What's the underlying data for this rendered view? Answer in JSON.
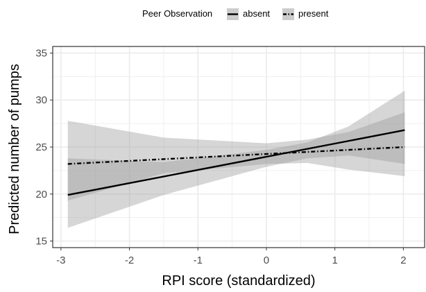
{
  "chart_data": {
    "type": "line",
    "xlabel": "RPI score (standardized)",
    "ylabel": "Predicted number of pumps",
    "xlim": [
      -3.12,
      2.31
    ],
    "ylim": [
      14.3,
      35.7
    ],
    "x_ticks": [
      -3,
      -2,
      -1,
      0,
      1,
      2
    ],
    "y_ticks": [
      15,
      20,
      25,
      30,
      35
    ],
    "grid": true,
    "legend": {
      "title": "Peer Observation",
      "placement": "top",
      "entries": [
        "absent",
        "present"
      ]
    },
    "series": [
      {
        "name": "absent",
        "line_style": "solid",
        "x": [
          -2.9,
          2.02
        ],
        "y": [
          19.9,
          26.8
        ],
        "ci_lower": [
          [
            -2.9,
            16.4
          ],
          [
            -1.5,
            19.9
          ],
          [
            0.0,
            22.9
          ],
          [
            0.6,
            23.8
          ],
          [
            1.2,
            24.1
          ],
          [
            2.02,
            23.2
          ]
        ],
        "ci_upper": [
          [
            -2.9,
            23.8
          ],
          [
            -1.5,
            23.4
          ],
          [
            0.0,
            24.7
          ],
          [
            0.6,
            25.5
          ],
          [
            1.2,
            27.2
          ],
          [
            2.02,
            31.0
          ]
        ]
      },
      {
        "name": "present",
        "line_style": "dashed",
        "x": [
          -2.9,
          2.02
        ],
        "y": [
          23.2,
          25.0
        ],
        "ci_lower": [
          [
            -2.9,
            19.3
          ],
          [
            -1.5,
            22.2
          ],
          [
            0.0,
            23.2
          ],
          [
            0.6,
            23.3
          ],
          [
            1.2,
            22.6
          ],
          [
            2.02,
            21.9
          ]
        ],
        "ci_upper": [
          [
            -2.9,
            27.8
          ],
          [
            -1.5,
            26.0
          ],
          [
            0.0,
            25.4
          ],
          [
            0.6,
            25.8
          ],
          [
            1.2,
            26.6
          ],
          [
            2.02,
            28.7
          ]
        ]
      }
    ]
  },
  "colors": {
    "line": "#000000",
    "ribbon": "#999999",
    "grid": "#ebebeb",
    "panel_border": "#333333",
    "tick_text": "#4d4d4d"
  }
}
